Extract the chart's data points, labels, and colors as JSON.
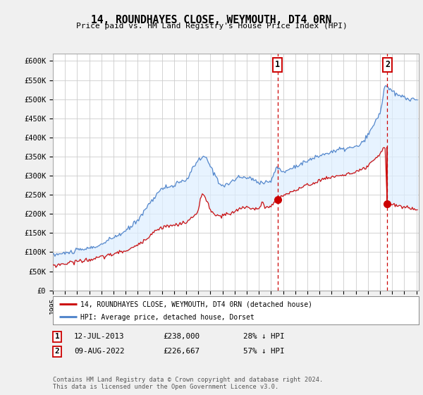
{
  "title": "14, ROUNDHAYES CLOSE, WEYMOUTH, DT4 0RN",
  "subtitle": "Price paid vs. HM Land Registry's House Price Index (HPI)",
  "ylim": [
    0,
    620000
  ],
  "yticks": [
    0,
    50000,
    100000,
    150000,
    200000,
    250000,
    300000,
    350000,
    400000,
    450000,
    500000,
    550000,
    600000
  ],
  "ytick_labels": [
    "£0",
    "£50K",
    "£100K",
    "£150K",
    "£200K",
    "£250K",
    "£300K",
    "£350K",
    "£400K",
    "£450K",
    "£500K",
    "£550K",
    "£600K"
  ],
  "hpi_color": "#5588cc",
  "price_color": "#cc1111",
  "annotation_color": "#cc0000",
  "fill_color": "#ddeeff",
  "marker1_date_x": 2013.54,
  "marker1_price": 238000,
  "marker1_label": "1",
  "marker2_date_x": 2022.61,
  "marker2_price": 226667,
  "marker2_label": "2",
  "legend_line1": "14, ROUNDHAYES CLOSE, WEYMOUTH, DT4 0RN (detached house)",
  "legend_line2": "HPI: Average price, detached house, Dorset",
  "note1_label": "1",
  "note1_date": "12-JUL-2013",
  "note1_price": "£238,000",
  "note1_pct": "28% ↓ HPI",
  "note2_label": "2",
  "note2_date": "09-AUG-2022",
  "note2_price": "£226,667",
  "note2_pct": "57% ↓ HPI",
  "footer": "Contains HM Land Registry data © Crown copyright and database right 2024.\nThis data is licensed under the Open Government Licence v3.0.",
  "xlim_left": 1995.3,
  "xlim_right": 2025.2,
  "xtick_years": [
    1995,
    1996,
    1997,
    1998,
    1999,
    2000,
    2001,
    2002,
    2003,
    2004,
    2005,
    2006,
    2007,
    2008,
    2009,
    2010,
    2011,
    2012,
    2013,
    2014,
    2015,
    2016,
    2017,
    2018,
    2019,
    2020,
    2021,
    2022,
    2023,
    2024,
    2025
  ],
  "bg_color": "#f0f0f0",
  "plot_bg_color": "#ffffff"
}
